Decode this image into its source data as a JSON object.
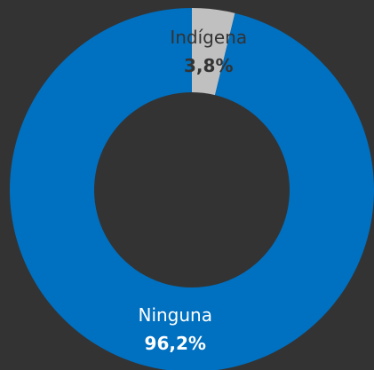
{
  "chart_data": {
    "type": "donut",
    "categories": [
      "Indígena",
      "Ninguna"
    ],
    "values": [
      3.8,
      96.2
    ],
    "value_labels": [
      "3,8%",
      "96,2%"
    ],
    "colors": [
      "#c0c0c0",
      "#0070c0"
    ],
    "label_colors": [
      "#333333",
      "#ffffff"
    ]
  }
}
